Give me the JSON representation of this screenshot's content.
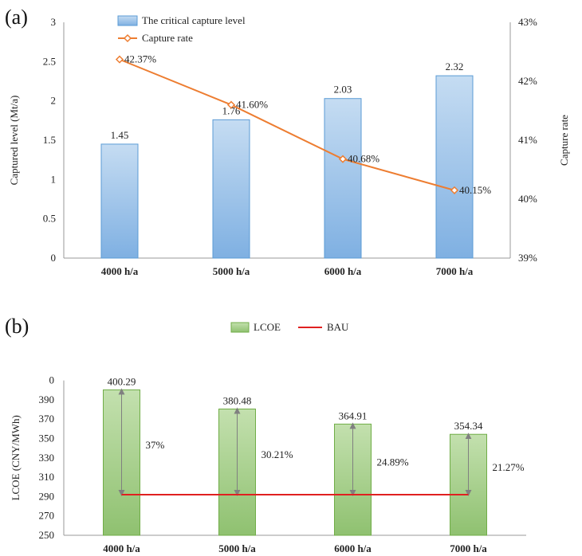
{
  "panels": {
    "a_label": "(a)",
    "b_label": "(b)"
  },
  "chart_data": [
    {
      "type": "bar",
      "categories": [
        "4000 h/a",
        "5000 h/a",
        "6000 h/a",
        "7000 h/a"
      ],
      "ylabel": "Captured level (Mt/a)",
      "y2label": "Capture rate",
      "ylim": [
        0,
        3
      ],
      "yticks": [
        "0",
        "0.5",
        "1",
        "1.5",
        "2",
        "2.5",
        "3"
      ],
      "y2lim": [
        39,
        43
      ],
      "y2ticks": [
        "39%",
        "40%",
        "41%",
        "42%",
        "43%"
      ],
      "grid": false,
      "legend_position": "top-center",
      "series": [
        {
          "name": "The critical capture level",
          "type": "bar",
          "values": [
            1.45,
            1.76,
            2.03,
            2.32
          ],
          "labels": [
            "1.45",
            "1.76",
            "2.03",
            "2.32"
          ],
          "color": "#9dc3e6"
        },
        {
          "name": "Capture rate",
          "type": "line",
          "axis": "right",
          "values": [
            42.37,
            41.6,
            40.68,
            40.15
          ],
          "labels": [
            "42.37%",
            "41.60%",
            "40.68%",
            "40.15%"
          ],
          "color": "#ed7d31"
        }
      ]
    },
    {
      "type": "bar",
      "categories": [
        "4000 h/a",
        "5000 h/a",
        "6000 h/a",
        "7000 h/a"
      ],
      "ylabel": "LCOE (CNY/MWh)",
      "ylim": [
        250,
        410
      ],
      "yticks": [
        "250",
        "270",
        "290",
        "310",
        "330",
        "350",
        "370",
        "390",
        "0"
      ],
      "grid": false,
      "legend_position": "top-center",
      "series": [
        {
          "name": "LCOE",
          "type": "bar",
          "values": [
            400.29,
            380.48,
            364.91,
            354.34
          ],
          "labels": [
            "400.29",
            "380.48",
            "364.91",
            "354.34"
          ],
          "color": "#a9d18e"
        },
        {
          "name": "BAU",
          "type": "line",
          "values": [
            292,
            292,
            292,
            292
          ],
          "color": "#e02020"
        }
      ],
      "annotations": [
        "37%",
        "30.21%",
        "24.89%",
        "21.27%"
      ]
    }
  ]
}
